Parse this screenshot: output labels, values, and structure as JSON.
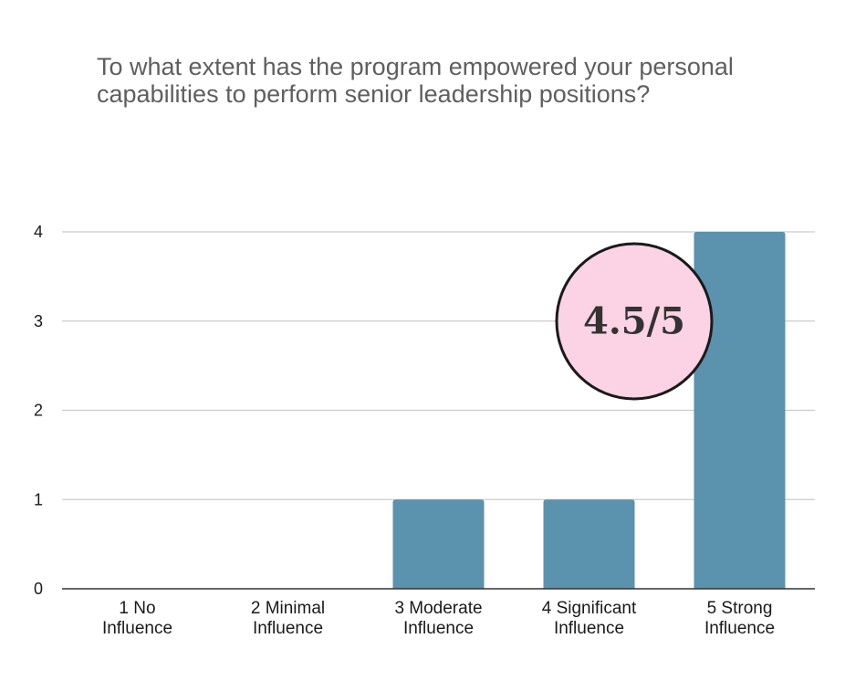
{
  "chart_data": {
    "type": "bar",
    "title": "To what extent has the program empowered your personal capabilities to perform senior leadership positions?",
    "categories": [
      [
        "1  No",
        "Influence"
      ],
      [
        "2 Minimal",
        "Influence"
      ],
      [
        "3 Moderate",
        "Influence"
      ],
      [
        "4 Significant",
        "Influence"
      ],
      [
        "5 Strong",
        "Influence"
      ]
    ],
    "values": [
      0,
      0,
      1,
      1,
      4
    ],
    "ylim": [
      0,
      4
    ],
    "yticks": [
      "0",
      "1",
      "2",
      "3",
      "4"
    ],
    "xlabel": "",
    "ylabel": "",
    "grid": true,
    "bar_color": "#5b92ad",
    "gridline_color": "#cccccc",
    "annotation": {
      "text": "4.5/5",
      "fill": "#fbd3e5",
      "stroke": "#1a1a1a"
    }
  }
}
